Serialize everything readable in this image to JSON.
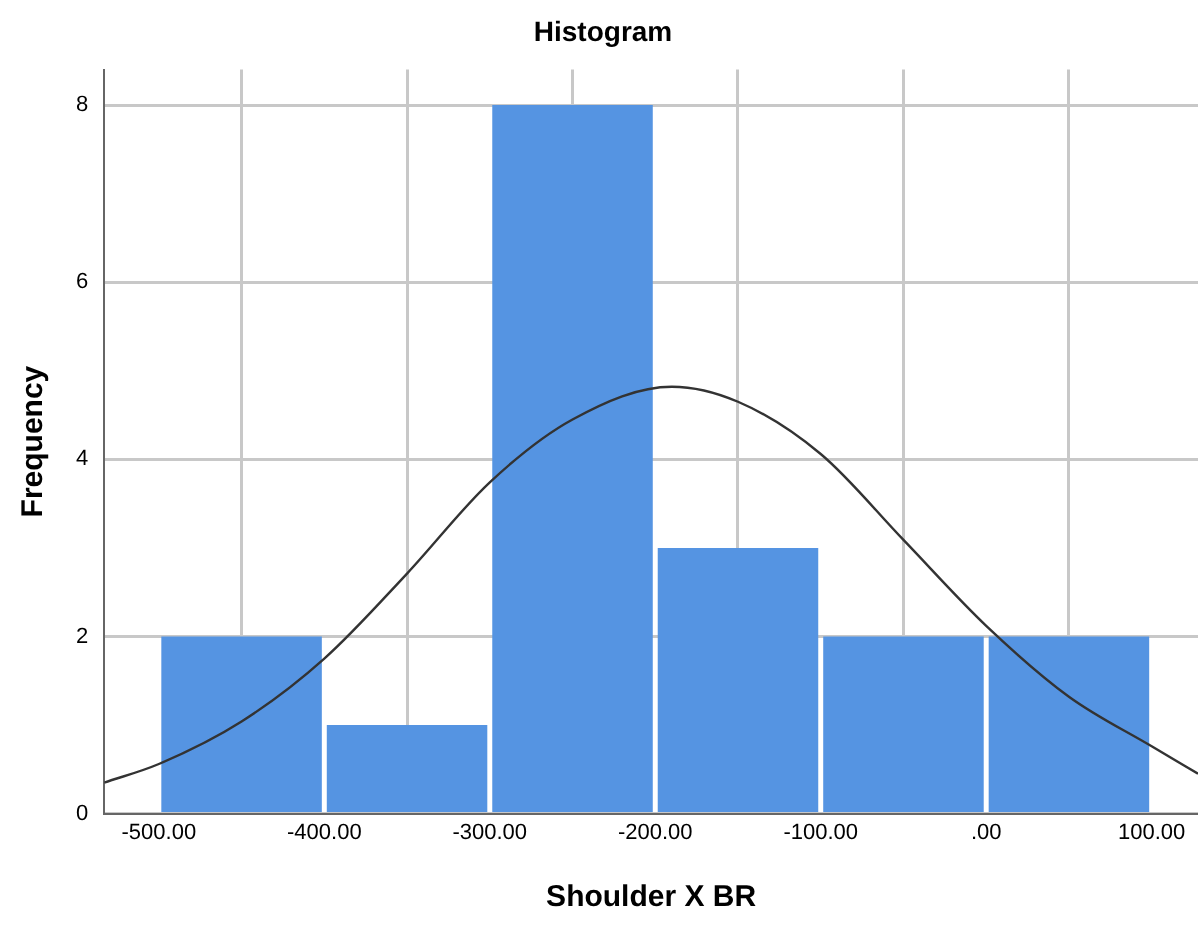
{
  "chart_data": {
    "type": "histogram",
    "title": "Histogram",
    "xlabel": "Shoulder X BR",
    "ylabel": "Frequency",
    "bins": [
      -500,
      -400,
      -300,
      -200,
      -100,
      0,
      100
    ],
    "values": [
      2,
      1,
      8,
      3,
      2,
      2
    ],
    "color": "#5594e2",
    "series": [
      {
        "type": "line",
        "color": "#333333",
        "x": [
          -533,
          -500,
          -450,
          -400,
          -350,
          -300,
          -250,
          -190,
          -150,
          -100,
          -50,
          0,
          50,
          100,
          128
        ],
        "values": [
          0.35,
          0.56,
          1.04,
          1.75,
          2.71,
          3.74,
          4.45,
          4.82,
          4.65,
          4.06,
          3.09,
          2.12,
          1.32,
          0.76,
          0.45
        ]
      }
    ],
    "xlim": [
      -533,
      128
    ],
    "xticks": [
      {
        "value": -500,
        "label": "-500.00"
      },
      {
        "value": -400,
        "label": "-400.00"
      },
      {
        "value": -300,
        "label": "-300.00"
      },
      {
        "value": -200,
        "label": "-200.00"
      },
      {
        "value": -100,
        "label": "-100.00"
      },
      {
        "value": 0,
        "label": ".00"
      },
      {
        "value": 100,
        "label": "100.00"
      }
    ],
    "ylim": [
      0,
      8.4
    ],
    "yticks": [
      0,
      2,
      4,
      6,
      8
    ],
    "grid": true,
    "legend": false,
    "marker": "none"
  }
}
